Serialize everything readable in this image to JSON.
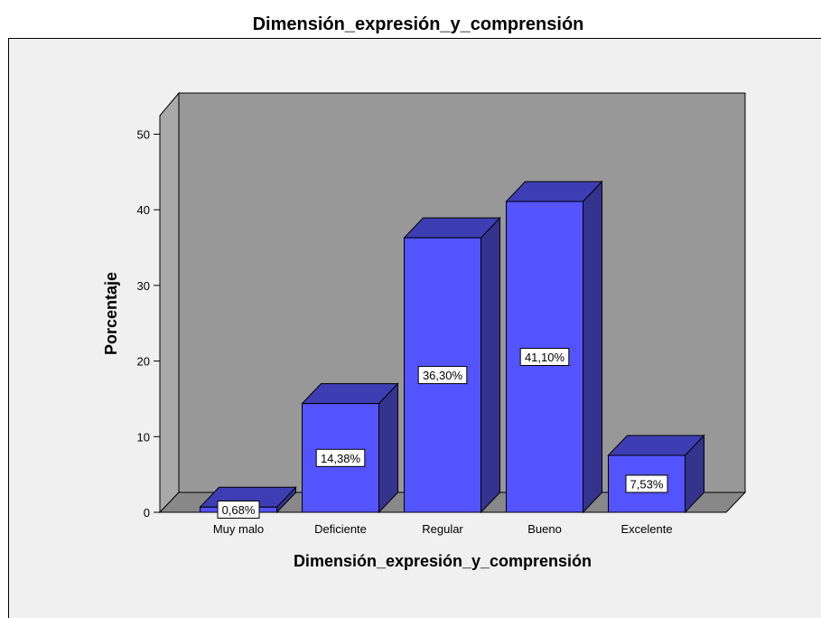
{
  "chart_data": {
    "type": "bar",
    "title": "Dimensión_expresión_y_comprensión",
    "xlabel": "Dimensión_expresión_y_comprensión",
    "ylabel": "Porcentaje",
    "categories": [
      "Muy malo",
      "Deficiente",
      "Regular",
      "Bueno",
      "Excelente"
    ],
    "values": [
      0.68,
      14.38,
      36.3,
      41.1,
      7.53
    ],
    "data_labels": [
      "0,68%",
      "14,38%",
      "36,30%",
      "41,10%",
      "7,53%"
    ],
    "yticks": [
      0,
      10,
      20,
      30,
      40,
      50
    ],
    "ylim": [
      0,
      55
    ],
    "grid": false,
    "three_d": true,
    "colors": {
      "bar_front": "#5454FF",
      "bar_top": "#3E3EB4",
      "bar_side": "#34348F",
      "back_wall": "#989898",
      "side_wall": "#A9A9A9",
      "floor": "#888888",
      "plot_area": "#F0F0F0"
    }
  }
}
